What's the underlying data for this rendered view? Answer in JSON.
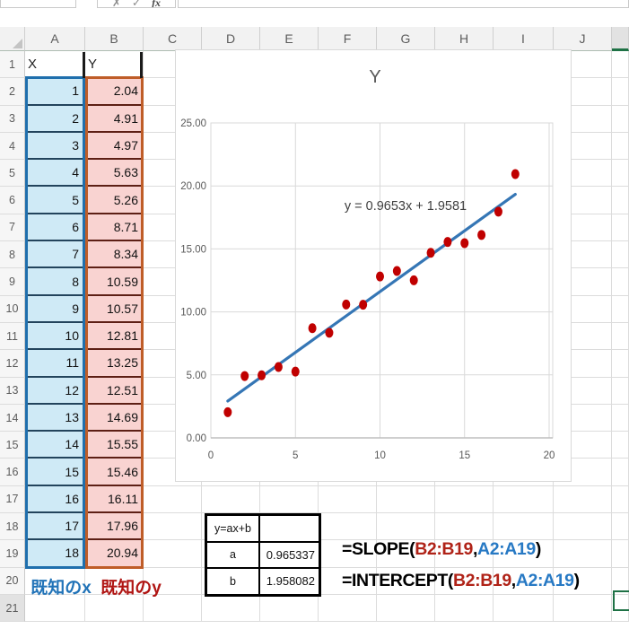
{
  "formula_bar": {
    "cancel_icon": "✗",
    "enter_icon": "✓",
    "fx_icon": "fx"
  },
  "sheet": {
    "column_headers": [
      "A",
      "B",
      "C",
      "D",
      "E",
      "F",
      "G",
      "H",
      "I",
      "J"
    ],
    "row_count": 21,
    "selected_row": 21,
    "cells": {
      "A1": "X",
      "B1": "Y"
    },
    "known_x_label": "既知のx",
    "known_y_label": "既知のy"
  },
  "data_table": {
    "x_header": "X",
    "y_header": "Y",
    "rows": [
      {
        "x": "1",
        "y": "2.04"
      },
      {
        "x": "2",
        "y": "4.91"
      },
      {
        "x": "3",
        "y": "4.97"
      },
      {
        "x": "4",
        "y": "5.63"
      },
      {
        "x": "5",
        "y": "5.26"
      },
      {
        "x": "6",
        "y": "8.71"
      },
      {
        "x": "7",
        "y": "8.34"
      },
      {
        "x": "8",
        "y": "10.59"
      },
      {
        "x": "9",
        "y": "10.57"
      },
      {
        "x": "10",
        "y": "12.81"
      },
      {
        "x": "11",
        "y": "13.25"
      },
      {
        "x": "12",
        "y": "12.51"
      },
      {
        "x": "13",
        "y": "14.69"
      },
      {
        "x": "14",
        "y": "15.55"
      },
      {
        "x": "15",
        "y": "15.46"
      },
      {
        "x": "16",
        "y": "16.11"
      },
      {
        "x": "17",
        "y": "17.96"
      },
      {
        "x": "18",
        "y": "20.94"
      }
    ]
  },
  "chart_data": {
    "type": "scatter",
    "title": "Y",
    "x": [
      1,
      2,
      3,
      4,
      5,
      6,
      7,
      8,
      9,
      10,
      11,
      12,
      13,
      14,
      15,
      16,
      17,
      18
    ],
    "y": [
      2.04,
      4.91,
      4.97,
      5.63,
      5.26,
      8.71,
      8.34,
      10.59,
      10.57,
      12.81,
      13.25,
      12.51,
      14.69,
      15.55,
      15.46,
      16.11,
      17.96,
      20.94
    ],
    "trendline": {
      "slope": 0.9653,
      "intercept": 1.9581,
      "equation": "y = 0.9653x + 1.9581"
    },
    "xlim": [
      0,
      20
    ],
    "ylim": [
      0,
      25
    ],
    "x_ticks": [
      0,
      5,
      10,
      15,
      20
    ],
    "x_tick_labels": [
      "0",
      "5",
      "10",
      "15",
      "20"
    ],
    "y_ticks": [
      0,
      5,
      10,
      15,
      20,
      25
    ],
    "y_tick_labels": [
      "0.00",
      "5.00",
      "10.00",
      "15.00",
      "20.00",
      "25.00"
    ],
    "grid": true,
    "point_color": "#c00000",
    "line_color": "#3576b5",
    "text_color": "#595959"
  },
  "result_table": {
    "header": "y=ax+b",
    "rows": [
      {
        "label": "a",
        "value": "0.965337"
      },
      {
        "label": "b",
        "value": "1.958082"
      }
    ]
  },
  "formulas": [
    {
      "pre": "=SLOPE(",
      "arg1": "B2:B19",
      "sep": ",",
      "arg2": "A2:A19",
      "post": ")"
    },
    {
      "pre": "=INTERCEPT(",
      "arg1": "B2:B19",
      "sep": ",",
      "arg2": "A2:A19",
      "post": ")"
    }
  ],
  "colors": {
    "range_x_fill": "#cfeaf6",
    "range_x_border": "#1f6fad",
    "range_y_fill": "#f9d3d1",
    "range_y_border": "#bf5d28",
    "known_x": "#2173b8",
    "known_y": "#b01513",
    "formula_arg1": "#b02318",
    "formula_arg2": "#2779c4",
    "selection_green": "#1e7145",
    "point": "#c00000",
    "trendline": "#3576b5"
  }
}
